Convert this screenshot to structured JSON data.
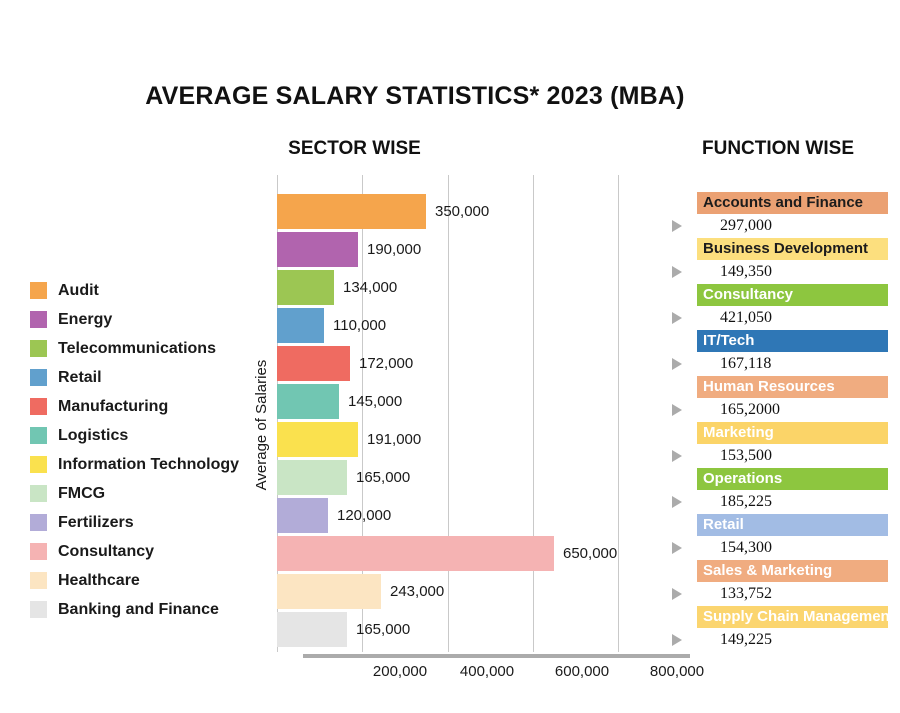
{
  "page": {
    "title": "AVERAGE SALARY STATISTICS* 2023 (MBA)"
  },
  "chart_data": [
    {
      "type": "bar",
      "orientation": "horizontal",
      "title": "SECTOR WISE",
      "xlabel": "",
      "ylabel": "Average of Salaries",
      "categories": [
        "Audit",
        "Energy",
        "Telecommunications",
        "Retail",
        "Manufacturing",
        "Logistics",
        "Information Technology",
        "FMCG",
        "Fertilizers",
        "Consultancy",
        "Healthcare",
        "Banking and Finance"
      ],
      "values": [
        350000,
        190000,
        134000,
        110000,
        172000,
        145000,
        191000,
        165000,
        120000,
        650000,
        243000,
        165000
      ],
      "value_labels": [
        "350,000",
        "190,000",
        "134,000",
        "110,000",
        "172,000",
        "145,000",
        "191,000",
        "165,000",
        "120,000",
        "650,000",
        "243,000",
        "165,000"
      ],
      "colors": [
        "#F5A54C",
        "#B164AE",
        "#9CC653",
        "#61A0CD",
        "#EF6B61",
        "#71C6B2",
        "#FAE14E",
        "#C9E5C5",
        "#B2ACD8",
        "#F5B3B3",
        "#FCE5C2",
        "#E5E5E5"
      ],
      "xlim": [
        0,
        800000
      ],
      "x_tick_values": [
        0,
        200000,
        400000,
        600000,
        800000
      ],
      "x_tick_labels": [
        "200,000",
        "400,000",
        "600,000",
        "800,000"
      ],
      "grid": true,
      "gridline_color": "#C9C9C9",
      "axis_line_color": "#ABABAB",
      "legend_position": "left"
    },
    {
      "type": "table",
      "title": "FUNCTION WISE",
      "marker_icon": "right-triangle-icon",
      "marker_color": "#ABABAB",
      "rows": [
        {
          "function": "Accounts and Finance",
          "salary": "297,000",
          "color": "#EBA173",
          "text_color": "#1C1C1C"
        },
        {
          "function": "Business Development",
          "salary": "149,350",
          "color": "#FCDF7E",
          "text_color": "#1C1C1C"
        },
        {
          "function": "Consultancy",
          "salary": "421,050",
          "color": "#8DC63F",
          "text_color": "#FFFFFF"
        },
        {
          "function": "IT/Tech",
          "salary": "167,118",
          "color": "#2F77B6",
          "text_color": "#FFFFFF"
        },
        {
          "function": "Human Resources",
          "salary": "165,2000",
          "color": "#F0AC80",
          "text_color": "#FFFFFF"
        },
        {
          "function": "Marketing",
          "salary": "153,500",
          "color": "#FBD468",
          "text_color": "#FFFFFF"
        },
        {
          "function": "Operations",
          "salary": "185,225",
          "color": "#8DC63F",
          "text_color": "#FFFFFF"
        },
        {
          "function": "Retail",
          "salary": "154,300",
          "color": "#A2BCE4",
          "text_color": "#FFFFFF"
        },
        {
          "function": "Sales & Marketing",
          "salary": "133,752",
          "color": "#F0AC80",
          "text_color": "#FFFFFF"
        },
        {
          "function": "Supply Chain Management",
          "salary": "149,225",
          "color": "#FBD56F",
          "text_color": "#FFFFFF"
        }
      ]
    }
  ]
}
